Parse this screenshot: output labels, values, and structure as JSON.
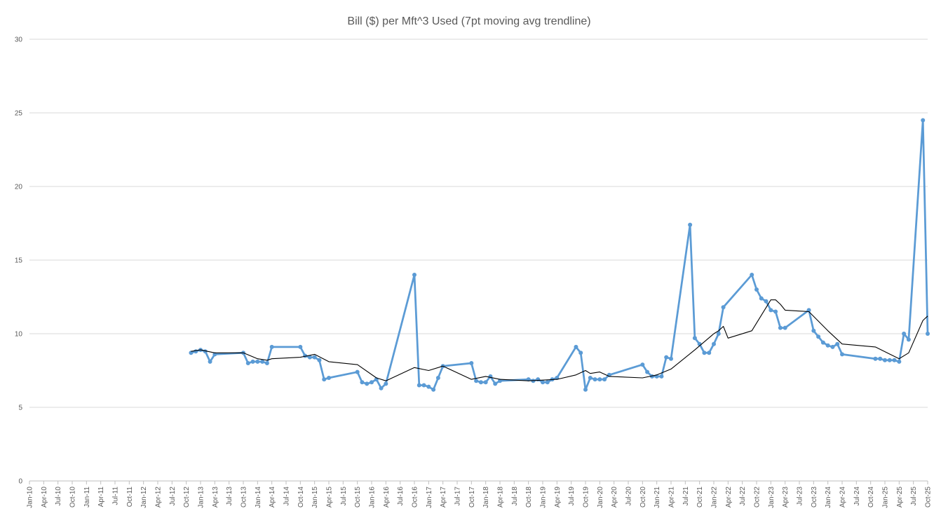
{
  "chart_data": {
    "type": "line",
    "title": "Bill ($) per Mft^3 Used (7pt moving avg trendline)",
    "xlabel": "",
    "ylabel": "",
    "ylim": [
      0,
      30
    ],
    "y_ticks": [
      0,
      5,
      10,
      15,
      20,
      25,
      30
    ],
    "x_tick_labels": [
      "Jan-10",
      "Apr-10",
      "Jul-10",
      "Oct-10",
      "Jan-11",
      "Apr-11",
      "Jul-11",
      "Oct-11",
      "Jan-12",
      "Apr-12",
      "Jul-12",
      "Oct-12",
      "Jan-13",
      "Apr-13",
      "Jul-13",
      "Oct-13",
      "Jan-14",
      "Apr-14",
      "Jul-14",
      "Oct-14",
      "Jan-15",
      "Apr-15",
      "Jul-15",
      "Oct-15",
      "Jan-16",
      "Apr-16",
      "Jul-16",
      "Oct-16",
      "Jan-17",
      "Apr-17",
      "Jul-17",
      "Oct-17",
      "Jan-18",
      "Apr-18",
      "Jul-18",
      "Oct-18",
      "Jan-19",
      "Apr-19",
      "Jul-19",
      "Oct-19",
      "Jan-20",
      "Apr-20",
      "Jul-20",
      "Oct-20",
      "Jan-21",
      "Apr-21",
      "Jul-21",
      "Oct-21",
      "Jan-22",
      "Apr-22",
      "Jul-22",
      "Oct-22",
      "Jan-23",
      "Apr-23",
      "Jul-23",
      "Oct-23",
      "Jan-24",
      "Apr-24",
      "Jul-24",
      "Oct-24",
      "Jan-25",
      "Apr-25",
      "Jul-25",
      "Oct-25"
    ],
    "x_range": [
      "2010-01",
      "2025-10"
    ],
    "grid": true,
    "legend": "none",
    "series": [
      {
        "color": "#5b9bd5",
        "points": [
          [
            "2012-11",
            8.7
          ],
          [
            "2012-12",
            8.8
          ],
          [
            "2013-01",
            8.9
          ],
          [
            "2013-02",
            8.8
          ],
          [
            "2013-03",
            8.1
          ],
          [
            "2013-04",
            8.6
          ],
          [
            "2013-10",
            8.7
          ],
          [
            "2013-11",
            8.0
          ],
          [
            "2013-12",
            8.1
          ],
          [
            "2014-01",
            8.1
          ],
          [
            "2014-02",
            8.1
          ],
          [
            "2014-03",
            8.0
          ],
          [
            "2014-04",
            9.1
          ],
          [
            "2014-10",
            9.1
          ],
          [
            "2014-11",
            8.5
          ],
          [
            "2014-12",
            8.4
          ],
          [
            "2015-01",
            8.4
          ],
          [
            "2015-02",
            8.2
          ],
          [
            "2015-03",
            6.9
          ],
          [
            "2015-04",
            7.0
          ],
          [
            "2015-10",
            7.4
          ],
          [
            "2015-11",
            6.7
          ],
          [
            "2015-12",
            6.6
          ],
          [
            "2016-01",
            6.7
          ],
          [
            "2016-02",
            6.9
          ],
          [
            "2016-03",
            6.3
          ],
          [
            "2016-04",
            6.6
          ],
          [
            "2016-10",
            14.0
          ],
          [
            "2016-11",
            6.5
          ],
          [
            "2016-12",
            6.5
          ],
          [
            "2017-01",
            6.4
          ],
          [
            "2017-02",
            6.2
          ],
          [
            "2017-03",
            7.0
          ],
          [
            "2017-04",
            7.8
          ],
          [
            "2017-10",
            8.0
          ],
          [
            "2017-11",
            6.8
          ],
          [
            "2017-12",
            6.7
          ],
          [
            "2018-01",
            6.7
          ],
          [
            "2018-02",
            7.1
          ],
          [
            "2018-03",
            6.6
          ],
          [
            "2018-04",
            6.8
          ],
          [
            "2018-10",
            6.9
          ],
          [
            "2018-11",
            6.8
          ],
          [
            "2018-12",
            6.9
          ],
          [
            "2019-01",
            6.7
          ],
          [
            "2019-02",
            6.7
          ],
          [
            "2019-03",
            6.9
          ],
          [
            "2019-04",
            7.0
          ],
          [
            "2019-08",
            9.1
          ],
          [
            "2019-09",
            8.7
          ],
          [
            "2019-10",
            6.2
          ],
          [
            "2019-11",
            7.0
          ],
          [
            "2019-12",
            6.9
          ],
          [
            "2020-01",
            6.9
          ],
          [
            "2020-02",
            6.9
          ],
          [
            "2020-03",
            7.2
          ],
          [
            "2020-10",
            7.9
          ],
          [
            "2020-11",
            7.4
          ],
          [
            "2020-12",
            7.1
          ],
          [
            "2021-01",
            7.1
          ],
          [
            "2021-02",
            7.1
          ],
          [
            "2021-03",
            8.4
          ],
          [
            "2021-04",
            8.3
          ],
          [
            "2021-08",
            17.4
          ],
          [
            "2021-09",
            9.7
          ],
          [
            "2021-10",
            9.3
          ],
          [
            "2021-11",
            8.7
          ],
          [
            "2021-12",
            8.7
          ],
          [
            "2022-01",
            9.3
          ],
          [
            "2022-02",
            10.0
          ],
          [
            "2022-03",
            11.8
          ],
          [
            "2022-09",
            14.0
          ],
          [
            "2022-10",
            13.0
          ],
          [
            "2022-11",
            12.4
          ],
          [
            "2022-12",
            12.2
          ],
          [
            "2023-01",
            11.6
          ],
          [
            "2023-02",
            11.5
          ],
          [
            "2023-03",
            10.4
          ],
          [
            "2023-04",
            10.4
          ],
          [
            "2023-09",
            11.6
          ],
          [
            "2023-10",
            10.2
          ],
          [
            "2023-11",
            9.8
          ],
          [
            "2023-12",
            9.4
          ],
          [
            "2024-01",
            9.2
          ],
          [
            "2024-02",
            9.1
          ],
          [
            "2024-03",
            9.3
          ],
          [
            "2024-04",
            8.6
          ],
          [
            "2024-11",
            8.3
          ],
          [
            "2024-12",
            8.3
          ],
          [
            "2025-01",
            8.2
          ],
          [
            "2025-02",
            8.2
          ],
          [
            "2025-03",
            8.2
          ],
          [
            "2025-04",
            8.1
          ],
          [
            "2025-05",
            10.0
          ],
          [
            "2025-06",
            9.6
          ],
          [
            "2025-09",
            24.5
          ],
          [
            "2025-10",
            10.0
          ]
        ]
      },
      {
        "color": "#000000",
        "points": [
          [
            "2012-11",
            8.8
          ],
          [
            "2013-01",
            8.9
          ],
          [
            "2013-04",
            8.7
          ],
          [
            "2013-10",
            8.7
          ],
          [
            "2014-01",
            8.3
          ],
          [
            "2014-03",
            8.2
          ],
          [
            "2014-04",
            8.3
          ],
          [
            "2014-10",
            8.4
          ],
          [
            "2015-01",
            8.6
          ],
          [
            "2015-04",
            8.1
          ],
          [
            "2015-10",
            7.9
          ],
          [
            "2016-02",
            7.0
          ],
          [
            "2016-04",
            6.8
          ],
          [
            "2016-10",
            7.7
          ],
          [
            "2017-01",
            7.5
          ],
          [
            "2017-04",
            7.8
          ],
          [
            "2017-10",
            6.9
          ],
          [
            "2018-01",
            7.1
          ],
          [
            "2018-04",
            6.9
          ],
          [
            "2018-10",
            6.8
          ],
          [
            "2019-04",
            6.9
          ],
          [
            "2019-08",
            7.2
          ],
          [
            "2019-10",
            7.5
          ],
          [
            "2019-11",
            7.3
          ],
          [
            "2020-01",
            7.4
          ],
          [
            "2020-03",
            7.1
          ],
          [
            "2020-10",
            7.0
          ],
          [
            "2021-01",
            7.2
          ],
          [
            "2021-04",
            7.6
          ],
          [
            "2021-09",
            8.9
          ],
          [
            "2022-01",
            10.0
          ],
          [
            "2022-02",
            10.2
          ],
          [
            "2022-03",
            10.5
          ],
          [
            "2022-04",
            9.7
          ],
          [
            "2022-09",
            10.2
          ],
          [
            "2023-01",
            12.3
          ],
          [
            "2023-02",
            12.3
          ],
          [
            "2023-03",
            12.0
          ],
          [
            "2023-04",
            11.6
          ],
          [
            "2023-09",
            11.5
          ],
          [
            "2024-01",
            10.2
          ],
          [
            "2024-04",
            9.3
          ],
          [
            "2024-11",
            9.1
          ],
          [
            "2025-04",
            8.3
          ],
          [
            "2025-06",
            8.7
          ],
          [
            "2025-09",
            10.9
          ],
          [
            "2025-10",
            11.2
          ]
        ]
      }
    ]
  }
}
